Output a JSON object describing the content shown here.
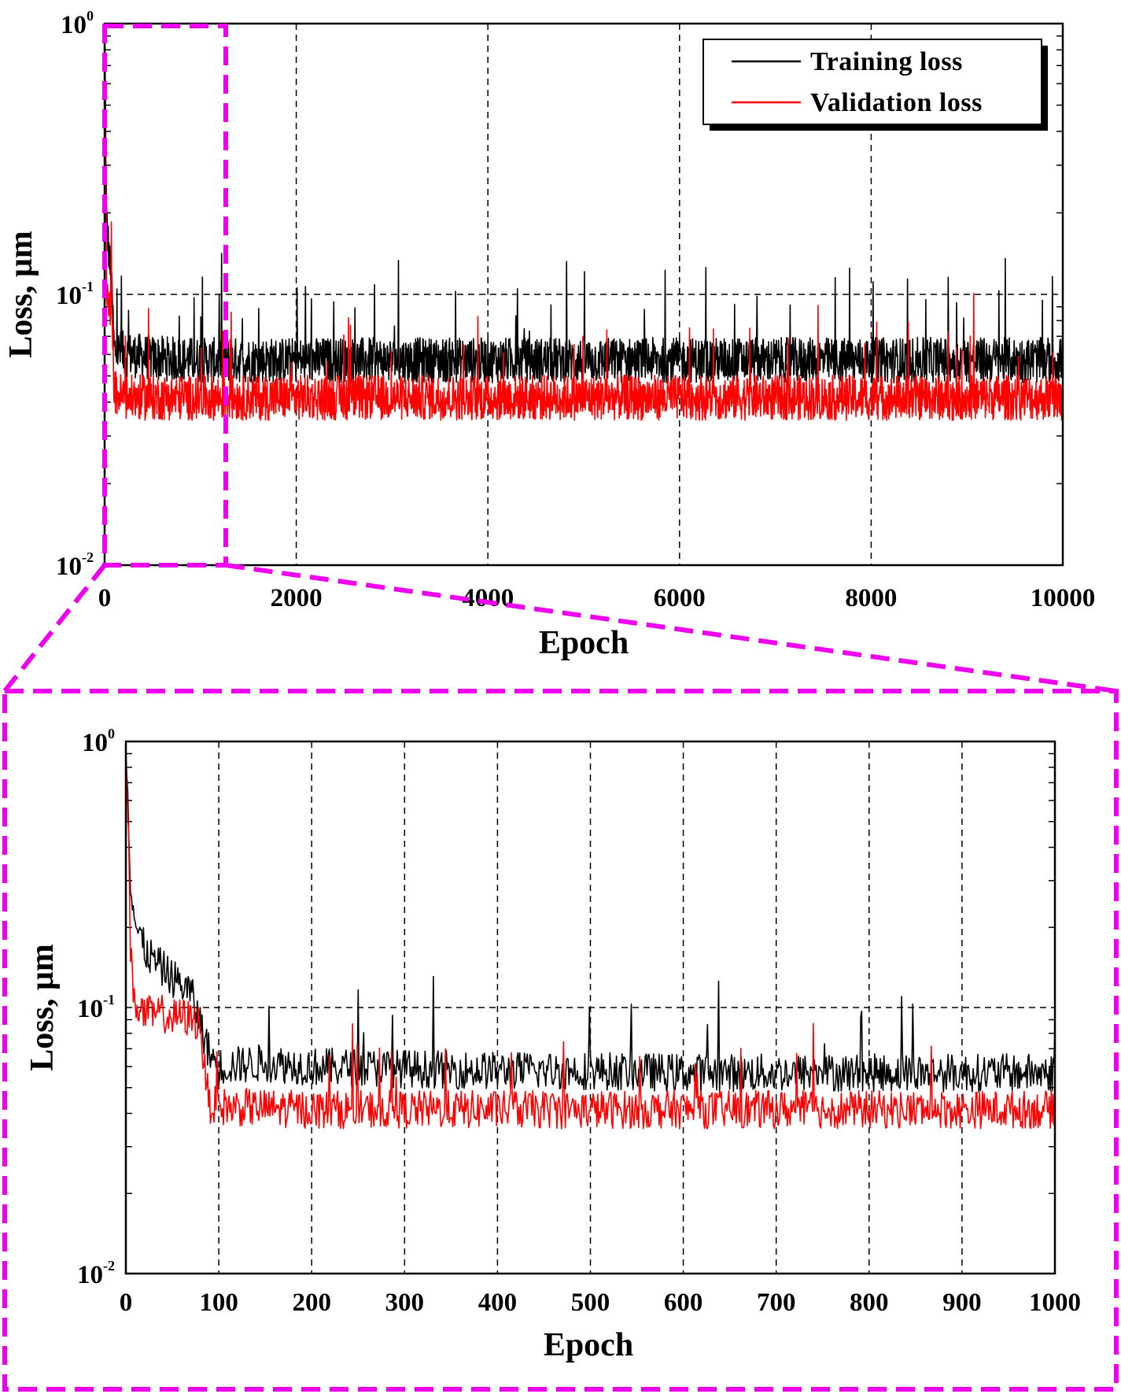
{
  "chart_data": [
    {
      "type": "line",
      "xlabel": "Epoch",
      "ylabel": "Loss, μm",
      "yscale": "log",
      "xlim": [
        0,
        10000
      ],
      "ylim": [
        0.01,
        1
      ],
      "xticks": [
        "0",
        "2000",
        "4000",
        "6000",
        "8000",
        "10000"
      ],
      "yticks": [
        {
          "base": "10",
          "exp": "-2"
        },
        {
          "base": "10",
          "exp": "-1"
        },
        {
          "base": "10",
          "exp": "0"
        }
      ],
      "grid": true,
      "legend": "top-right",
      "series": [
        {
          "name": "Training loss",
          "color": "#000000",
          "x": [
            0,
            20,
            50,
            80,
            100,
            200,
            500,
            1000,
            2000,
            3000,
            4000,
            5000,
            6000,
            7000,
            8000,
            9000,
            10000
          ],
          "y": [
            1.0,
            0.18,
            0.13,
            0.09,
            0.06,
            0.058,
            0.056,
            0.055,
            0.055,
            0.055,
            0.055,
            0.055,
            0.055,
            0.055,
            0.055,
            0.055,
            0.055
          ]
        },
        {
          "name": "Validation loss",
          "color": "#ff0000",
          "x": [
            0,
            20,
            50,
            80,
            100,
            200,
            500,
            1000,
            2000,
            3000,
            4000,
            5000,
            6000,
            7000,
            8000,
            9000,
            10000
          ],
          "y": [
            1.0,
            0.09,
            0.085,
            0.08,
            0.042,
            0.04,
            0.04,
            0.04,
            0.04,
            0.04,
            0.04,
            0.04,
            0.04,
            0.04,
            0.04,
            0.04,
            0.04
          ]
        }
      ]
    },
    {
      "type": "line",
      "xlabel": "Epoch",
      "ylabel": "Loss, μm",
      "yscale": "log",
      "xlim": [
        0,
        1000
      ],
      "ylim": [
        0.01,
        1
      ],
      "xticks": [
        "0",
        "100",
        "200",
        "300",
        "400",
        "500",
        "600",
        "700",
        "800",
        "900",
        "1000"
      ],
      "yticks": [
        {
          "base": "10",
          "exp": "-2"
        },
        {
          "base": "10",
          "exp": "-1"
        },
        {
          "base": "10",
          "exp": "0"
        }
      ],
      "grid": true,
      "series": [
        {
          "name": "Training loss",
          "color": "#000000",
          "x": [
            0,
            3,
            5,
            10,
            20,
            30,
            40,
            50,
            60,
            70,
            80,
            90,
            100,
            150,
            200,
            300,
            400,
            500,
            600,
            700,
            800,
            900,
            1000
          ],
          "y": [
            1.0,
            0.5,
            0.3,
            0.2,
            0.16,
            0.145,
            0.135,
            0.125,
            0.118,
            0.11,
            0.085,
            0.065,
            0.058,
            0.06,
            0.058,
            0.057,
            0.056,
            0.056,
            0.055,
            0.055,
            0.055,
            0.055,
            0.055
          ]
        },
        {
          "name": "Validation loss",
          "color": "#ff0000",
          "x": [
            0,
            3,
            5,
            10,
            20,
            30,
            40,
            50,
            60,
            70,
            80,
            85,
            90,
            100,
            200,
            300,
            400,
            500,
            600,
            700,
            800,
            900,
            1000
          ],
          "y": [
            1.0,
            0.4,
            0.15,
            0.1,
            0.092,
            0.09,
            0.092,
            0.088,
            0.09,
            0.087,
            0.085,
            0.055,
            0.042,
            0.041,
            0.04,
            0.04,
            0.04,
            0.04,
            0.04,
            0.04,
            0.04,
            0.04,
            0.04
          ]
        }
      ]
    }
  ],
  "zoom_box_color": "#ee00ee"
}
